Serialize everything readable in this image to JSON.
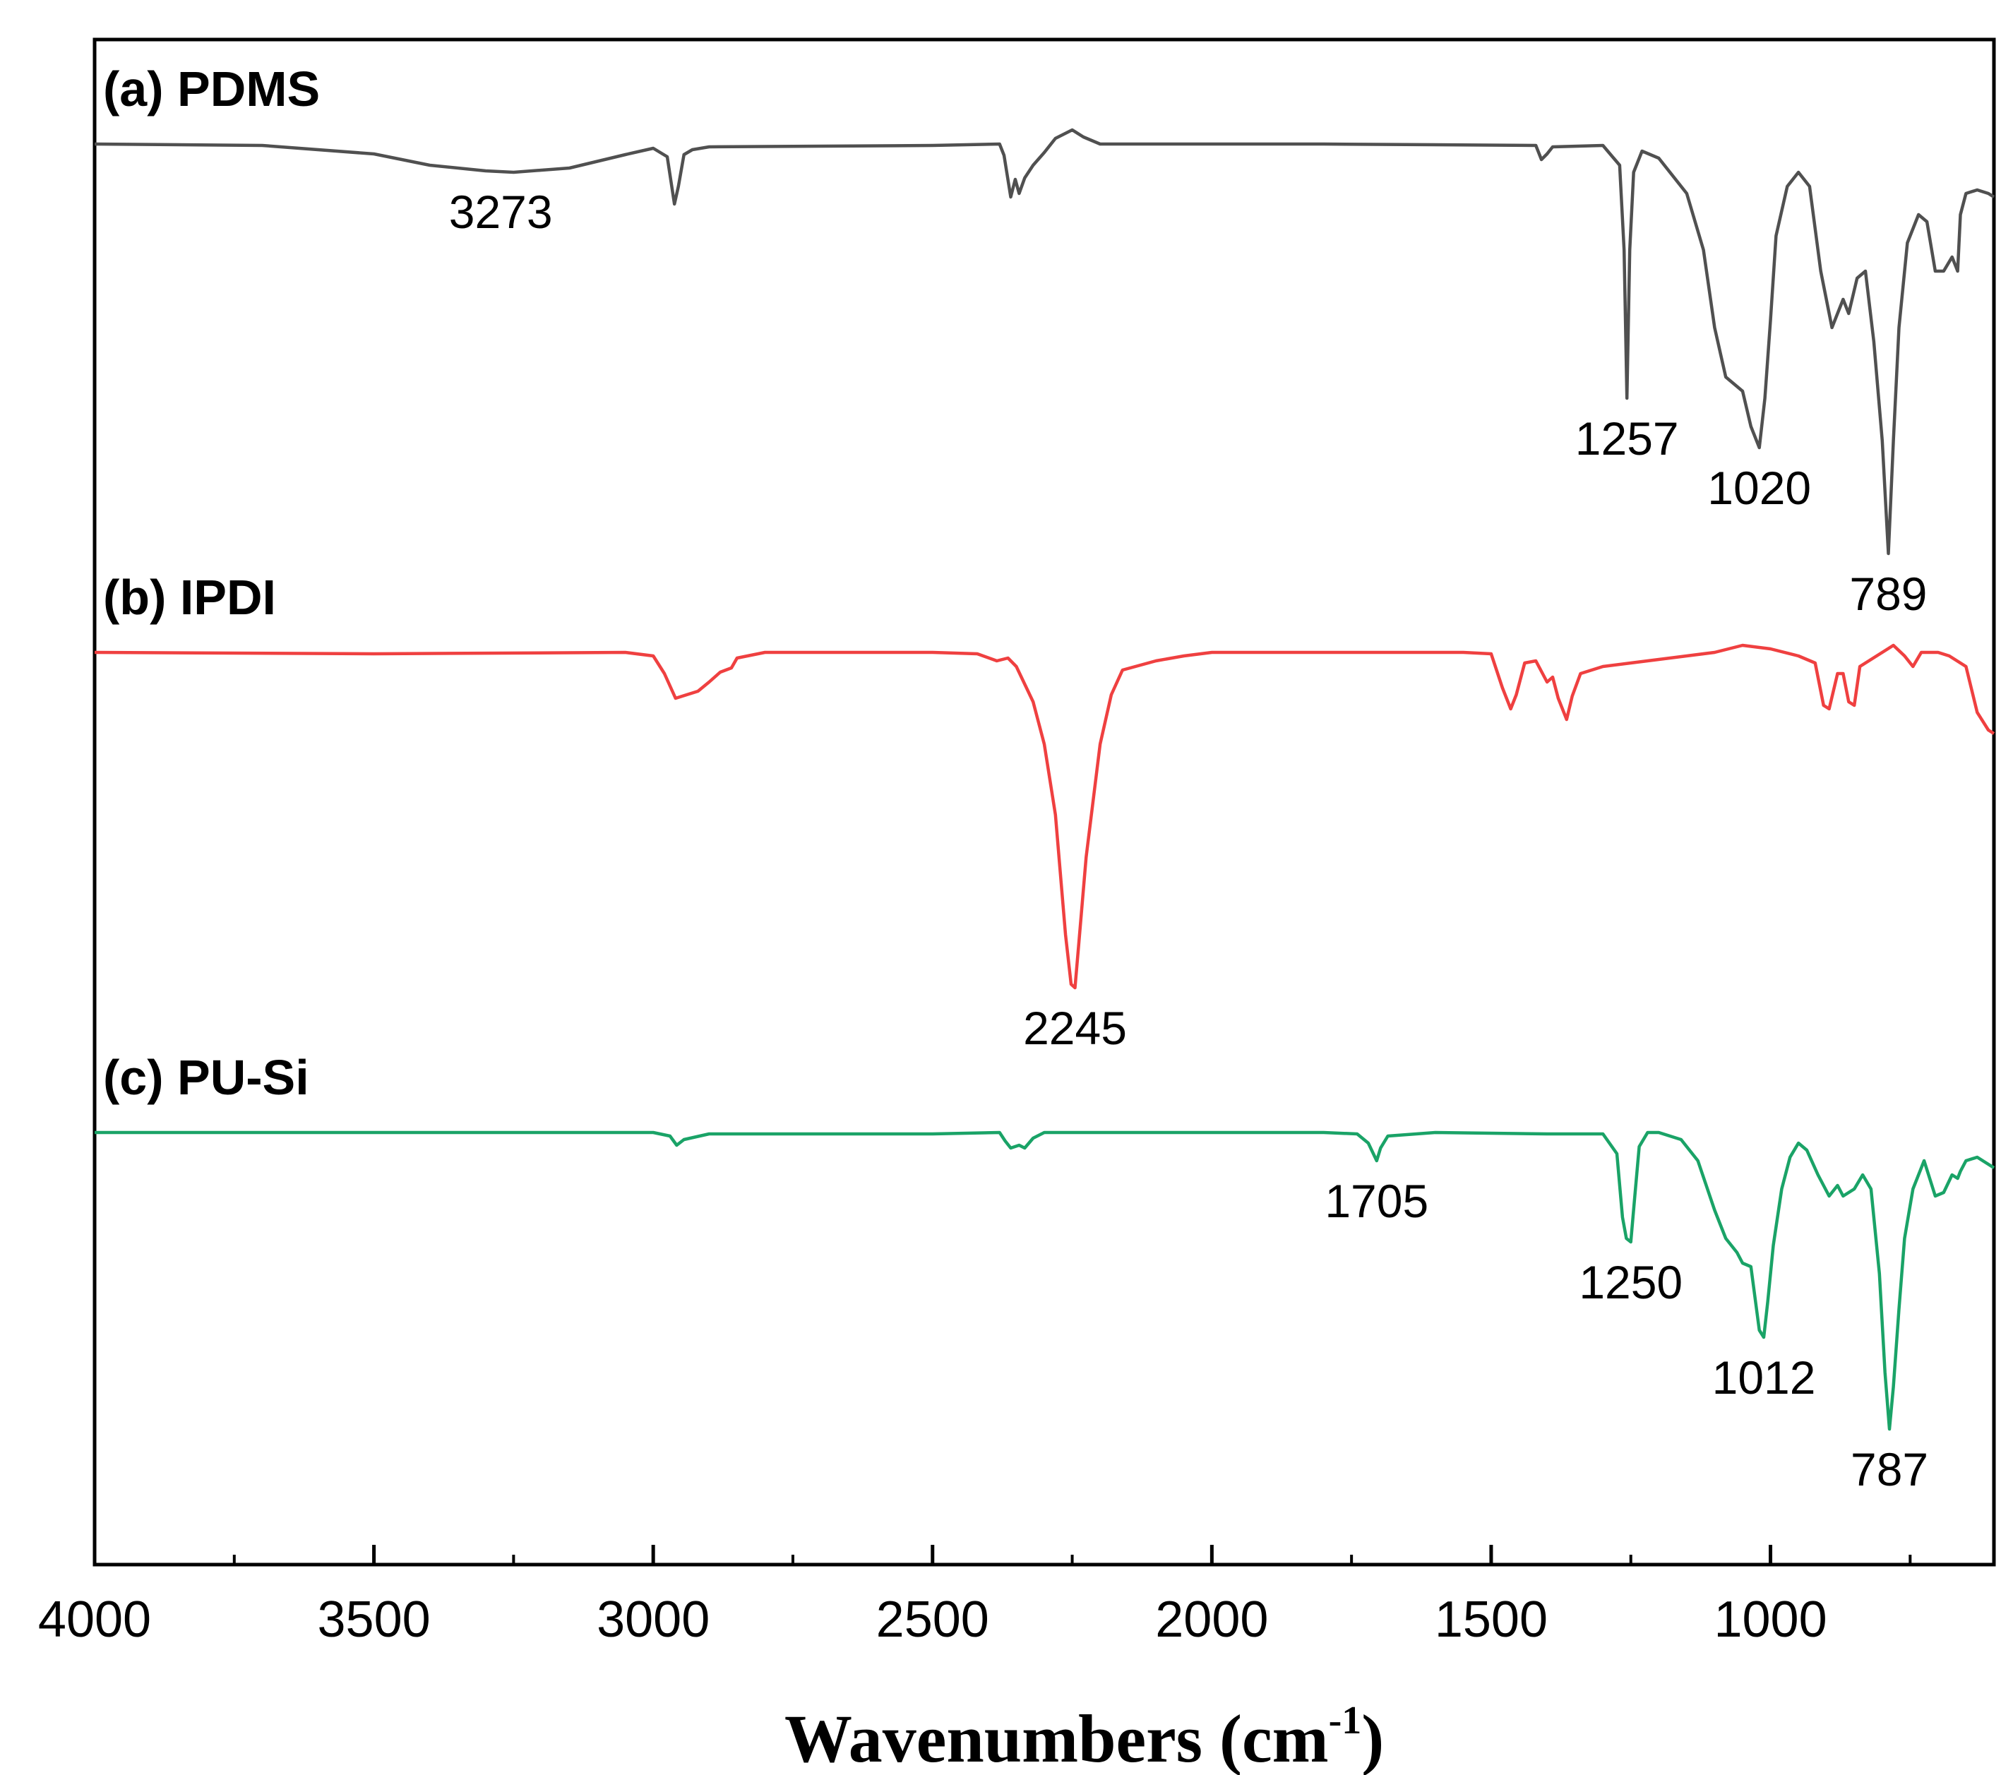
{
  "chart_data": {
    "type": "line",
    "title": "",
    "xlabel": "Wavenumbers (cm",
    "xlabel_sup": "-1",
    "xlabel_close": ")",
    "ylabel": "",
    "xlim": [
      4000,
      600
    ],
    "x_ticks": [
      4000,
      3500,
      3000,
      2500,
      2000,
      1500,
      1000
    ],
    "x_tick_labels": [
      "4000",
      "3500",
      "3000",
      "2500",
      "2000",
      "1500",
      "1000"
    ],
    "x_minor_step": 250,
    "grid": false,
    "series": [
      {
        "name": "PDMS",
        "label": "(a) PDMS",
        "color": "#505050",
        "offset": 0,
        "points": [
          [
            4000,
            0
          ],
          [
            3700,
            2
          ],
          [
            3500,
            14
          ],
          [
            3400,
            30
          ],
          [
            3300,
            38
          ],
          [
            3250,
            40
          ],
          [
            3150,
            34
          ],
          [
            3050,
            15
          ],
          [
            3000,
            6
          ],
          [
            2975,
            18
          ],
          [
            2962,
            85
          ],
          [
            2955,
            60
          ],
          [
            2945,
            15
          ],
          [
            2930,
            8
          ],
          [
            2900,
            4
          ],
          [
            2500,
            2
          ],
          [
            2380,
            0
          ],
          [
            2372,
            16
          ],
          [
            2360,
            75
          ],
          [
            2352,
            50
          ],
          [
            2345,
            70
          ],
          [
            2335,
            48
          ],
          [
            2320,
            30
          ],
          [
            2300,
            12
          ],
          [
            2280,
            -8
          ],
          [
            2250,
            -20
          ],
          [
            2230,
            -10
          ],
          [
            2200,
            0
          ],
          [
            1800,
            0
          ],
          [
            1420,
            2
          ],
          [
            1410,
            22
          ],
          [
            1400,
            14
          ],
          [
            1390,
            4
          ],
          [
            1300,
            2
          ],
          [
            1270,
            30
          ],
          [
            1262,
            150
          ],
          [
            1257,
            360
          ],
          [
            1252,
            150
          ],
          [
            1245,
            40
          ],
          [
            1230,
            10
          ],
          [
            1200,
            20
          ],
          [
            1150,
            70
          ],
          [
            1120,
            150
          ],
          [
            1100,
            260
          ],
          [
            1080,
            330
          ],
          [
            1050,
            350
          ],
          [
            1035,
            400
          ],
          [
            1020,
            430
          ],
          [
            1010,
            360
          ],
          [
            1000,
            250
          ],
          [
            990,
            130
          ],
          [
            970,
            60
          ],
          [
            950,
            40
          ],
          [
            930,
            60
          ],
          [
            910,
            180
          ],
          [
            890,
            260
          ],
          [
            870,
            220
          ],
          [
            860,
            240
          ],
          [
            845,
            190
          ],
          [
            830,
            180
          ],
          [
            815,
            280
          ],
          [
            800,
            420
          ],
          [
            789,
            580
          ],
          [
            780,
            420
          ],
          [
            770,
            260
          ],
          [
            755,
            140
          ],
          [
            735,
            100
          ],
          [
            720,
            110
          ],
          [
            705,
            180
          ],
          [
            690,
            180
          ],
          [
            675,
            160
          ],
          [
            665,
            180
          ],
          [
            660,
            100
          ],
          [
            650,
            70
          ],
          [
            630,
            65
          ],
          [
            610,
            70
          ],
          [
            600,
            75
          ]
        ],
        "peaks": [
          {
            "x": 3273,
            "label": "3273"
          },
          {
            "x": 1257,
            "label": "1257"
          },
          {
            "x": 1020,
            "label": "1020"
          },
          {
            "x": 789,
            "label": "789"
          }
        ]
      },
      {
        "name": "IPDI",
        "label": "(b) IPDI",
        "color": "#ef4040",
        "offset": 715,
        "points": [
          [
            4000,
            0
          ],
          [
            3500,
            2
          ],
          [
            3050,
            0
          ],
          [
            3000,
            5
          ],
          [
            2980,
            30
          ],
          [
            2960,
            65
          ],
          [
            2940,
            60
          ],
          [
            2920,
            55
          ],
          [
            2900,
            42
          ],
          [
            2880,
            28
          ],
          [
            2860,
            22
          ],
          [
            2850,
            8
          ],
          [
            2800,
            0
          ],
          [
            2500,
            0
          ],
          [
            2420,
            2
          ],
          [
            2385,
            12
          ],
          [
            2365,
            8
          ],
          [
            2350,
            20
          ],
          [
            2320,
            70
          ],
          [
            2300,
            130
          ],
          [
            2280,
            230
          ],
          [
            2262,
            400
          ],
          [
            2252,
            470
          ],
          [
            2245,
            475
          ],
          [
            2238,
            410
          ],
          [
            2225,
            290
          ],
          [
            2200,
            130
          ],
          [
            2180,
            60
          ],
          [
            2160,
            25
          ],
          [
            2100,
            12
          ],
          [
            2050,
            5
          ],
          [
            2000,
            0
          ],
          [
            1550,
            0
          ],
          [
            1500,
            2
          ],
          [
            1480,
            50
          ],
          [
            1465,
            80
          ],
          [
            1455,
            60
          ],
          [
            1440,
            15
          ],
          [
            1420,
            12
          ],
          [
            1400,
            42
          ],
          [
            1390,
            35
          ],
          [
            1380,
            65
          ],
          [
            1365,
            95
          ],
          [
            1355,
            62
          ],
          [
            1340,
            30
          ],
          [
            1300,
            20
          ],
          [
            1250,
            15
          ],
          [
            1200,
            10
          ],
          [
            1150,
            5
          ],
          [
            1100,
            0
          ],
          [
            1050,
            -10
          ],
          [
            1000,
            -5
          ],
          [
            950,
            5
          ],
          [
            920,
            15
          ],
          [
            905,
            75
          ],
          [
            895,
            80
          ],
          [
            880,
            30
          ],
          [
            870,
            30
          ],
          [
            860,
            70
          ],
          [
            850,
            75
          ],
          [
            840,
            20
          ],
          [
            800,
            0
          ],
          [
            780,
            -10
          ],
          [
            760,
            5
          ],
          [
            745,
            20
          ],
          [
            730,
            0
          ],
          [
            700,
            0
          ],
          [
            680,
            5
          ],
          [
            650,
            20
          ],
          [
            630,
            85
          ],
          [
            610,
            110
          ],
          [
            600,
            115
          ]
        ],
        "peaks": [
          {
            "x": 2245,
            "label": "2245"
          }
        ]
      },
      {
        "name": "PU-Si",
        "label": "(c) PU-Si",
        "color": "#1aa367",
        "offset": 1395,
        "points": [
          [
            4000,
            0
          ],
          [
            3500,
            0
          ],
          [
            3000,
            0
          ],
          [
            2970,
            5
          ],
          [
            2958,
            18
          ],
          [
            2945,
            10
          ],
          [
            2900,
            2
          ],
          [
            2500,
            2
          ],
          [
            2380,
            0
          ],
          [
            2370,
            12
          ],
          [
            2360,
            22
          ],
          [
            2345,
            18
          ],
          [
            2335,
            22
          ],
          [
            2320,
            8
          ],
          [
            2300,
            0
          ],
          [
            1800,
            0
          ],
          [
            1740,
            2
          ],
          [
            1720,
            15
          ],
          [
            1705,
            40
          ],
          [
            1698,
            22
          ],
          [
            1685,
            5
          ],
          [
            1600,
            0
          ],
          [
            1400,
            2
          ],
          [
            1300,
            2
          ],
          [
            1275,
            30
          ],
          [
            1265,
            120
          ],
          [
            1258,
            150
          ],
          [
            1250,
            155
          ],
          [
            1244,
            100
          ],
          [
            1235,
            20
          ],
          [
            1220,
            0
          ],
          [
            1200,
            0
          ],
          [
            1160,
            10
          ],
          [
            1130,
            40
          ],
          [
            1100,
            110
          ],
          [
            1080,
            150
          ],
          [
            1060,
            170
          ],
          [
            1050,
            185
          ],
          [
            1035,
            190
          ],
          [
            1020,
            280
          ],
          [
            1012,
            290
          ],
          [
            1005,
            240
          ],
          [
            995,
            160
          ],
          [
            980,
            80
          ],
          [
            965,
            35
          ],
          [
            950,
            15
          ],
          [
            935,
            25
          ],
          [
            915,
            60
          ],
          [
            895,
            90
          ],
          [
            880,
            75
          ],
          [
            870,
            90
          ],
          [
            850,
            80
          ],
          [
            835,
            60
          ],
          [
            820,
            80
          ],
          [
            805,
            200
          ],
          [
            795,
            340
          ],
          [
            787,
            420
          ],
          [
            780,
            360
          ],
          [
            770,
            250
          ],
          [
            760,
            150
          ],
          [
            745,
            80
          ],
          [
            725,
            40
          ],
          [
            705,
            90
          ],
          [
            690,
            85
          ],
          [
            675,
            60
          ],
          [
            665,
            65
          ],
          [
            660,
            55
          ],
          [
            650,
            40
          ],
          [
            630,
            35
          ],
          [
            610,
            45
          ],
          [
            600,
            50
          ]
        ],
        "peaks": [
          {
            "x": 1705,
            "label": "1705"
          },
          {
            "x": 1250,
            "label": "1250"
          },
          {
            "x": 1012,
            "label": "1012"
          },
          {
            "x": 787,
            "label": "787"
          }
        ]
      }
    ]
  }
}
